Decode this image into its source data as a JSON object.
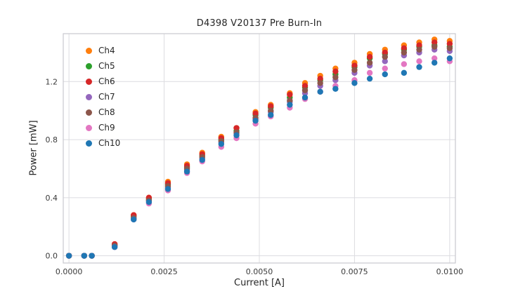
{
  "figure": {
    "title": "D4398 V20137 Pre Burn-In",
    "xlabel": "Current [A]",
    "ylabel": "Power [mW]"
  },
  "chart_data": {
    "type": "scatter",
    "title": "D4398 V20137 Pre Burn-In",
    "xlabel": "Current [A]",
    "ylabel": "Power [mW]",
    "grid": true,
    "legend_position": "upper-left",
    "xlim": [
      -0.00015,
      0.01015
    ],
    "ylim": [
      -0.05,
      1.53
    ],
    "xticks": [
      0.0,
      0.0025,
      0.005,
      0.0075,
      0.01
    ],
    "xtick_labels": [
      "0.0000",
      "0.0025",
      "0.0050",
      "0.0075",
      "0.0100"
    ],
    "yticks": [
      0.0,
      0.4,
      0.8,
      1.2
    ],
    "ytick_labels": [
      "0.0",
      "0.4",
      "0.8",
      "1.2"
    ],
    "x": [
      0.0,
      0.0004,
      0.0006,
      0.0012,
      0.0017,
      0.0021,
      0.0026,
      0.0031,
      0.0035,
      0.004,
      0.0044,
      0.0049,
      0.0053,
      0.0058,
      0.0062,
      0.0066,
      0.007,
      0.0075,
      0.0079,
      0.0083,
      0.0088,
      0.0092,
      0.0096,
      0.01
    ],
    "series": [
      {
        "name": "Ch4",
        "color": "#ff7f0e",
        "y": [
          0.0,
          0.0,
          0.0,
          0.08,
          0.28,
          0.4,
          0.51,
          0.63,
          0.71,
          0.82,
          0.88,
          0.99,
          1.04,
          1.12,
          1.19,
          1.24,
          1.29,
          1.33,
          1.39,
          1.42,
          1.45,
          1.47,
          1.49,
          1.48
        ]
      },
      {
        "name": "Ch5",
        "color": "#2ca02c",
        "y": [
          0.0,
          0.0,
          0.0,
          0.07,
          0.27,
          0.39,
          0.49,
          0.61,
          0.69,
          0.8,
          0.86,
          0.97,
          1.02,
          1.09,
          1.16,
          1.21,
          1.25,
          1.3,
          1.36,
          1.39,
          1.42,
          1.44,
          1.45,
          1.44
        ]
      },
      {
        "name": "Ch6",
        "color": "#d62728",
        "y": [
          0.0,
          0.0,
          0.0,
          0.08,
          0.28,
          0.4,
          0.5,
          0.62,
          0.7,
          0.81,
          0.88,
          0.98,
          1.03,
          1.11,
          1.17,
          1.22,
          1.27,
          1.31,
          1.37,
          1.4,
          1.43,
          1.45,
          1.47,
          1.46
        ]
      },
      {
        "name": "Ch7",
        "color": "#9467bd",
        "y": [
          0.0,
          0.0,
          0.0,
          0.07,
          0.26,
          0.38,
          0.47,
          0.59,
          0.67,
          0.78,
          0.84,
          0.94,
          0.99,
          1.06,
          1.12,
          1.17,
          1.21,
          1.26,
          1.31,
          1.34,
          1.38,
          1.4,
          1.42,
          1.41
        ]
      },
      {
        "name": "Ch8",
        "color": "#8c564b",
        "y": [
          0.0,
          0.0,
          0.0,
          0.07,
          0.26,
          0.38,
          0.48,
          0.6,
          0.68,
          0.79,
          0.85,
          0.95,
          1.0,
          1.07,
          1.14,
          1.19,
          1.23,
          1.28,
          1.33,
          1.37,
          1.4,
          1.42,
          1.44,
          1.43
        ]
      },
      {
        "name": "Ch9",
        "color": "#e377c2",
        "y": [
          0.0,
          0.0,
          0.0,
          0.06,
          0.25,
          0.36,
          0.45,
          0.57,
          0.65,
          0.75,
          0.81,
          0.91,
          0.96,
          1.02,
          1.08,
          1.13,
          1.17,
          1.21,
          1.26,
          1.29,
          1.32,
          1.34,
          1.36,
          1.34
        ]
      },
      {
        "name": "Ch10",
        "color": "#1f77b4",
        "y": [
          0.0,
          0.0,
          0.0,
          0.06,
          0.25,
          0.37,
          0.46,
          0.58,
          0.66,
          0.77,
          0.83,
          0.93,
          0.97,
          1.04,
          1.09,
          1.13,
          1.15,
          1.19,
          1.22,
          1.25,
          1.26,
          1.3,
          1.33,
          1.36
        ]
      }
    ],
    "style": {
      "grid_color": "#dcdce0",
      "spine_color": "#c9c9ce",
      "tick_label_color": "#3a3a3a",
      "marker_radius": 4.2
    }
  }
}
